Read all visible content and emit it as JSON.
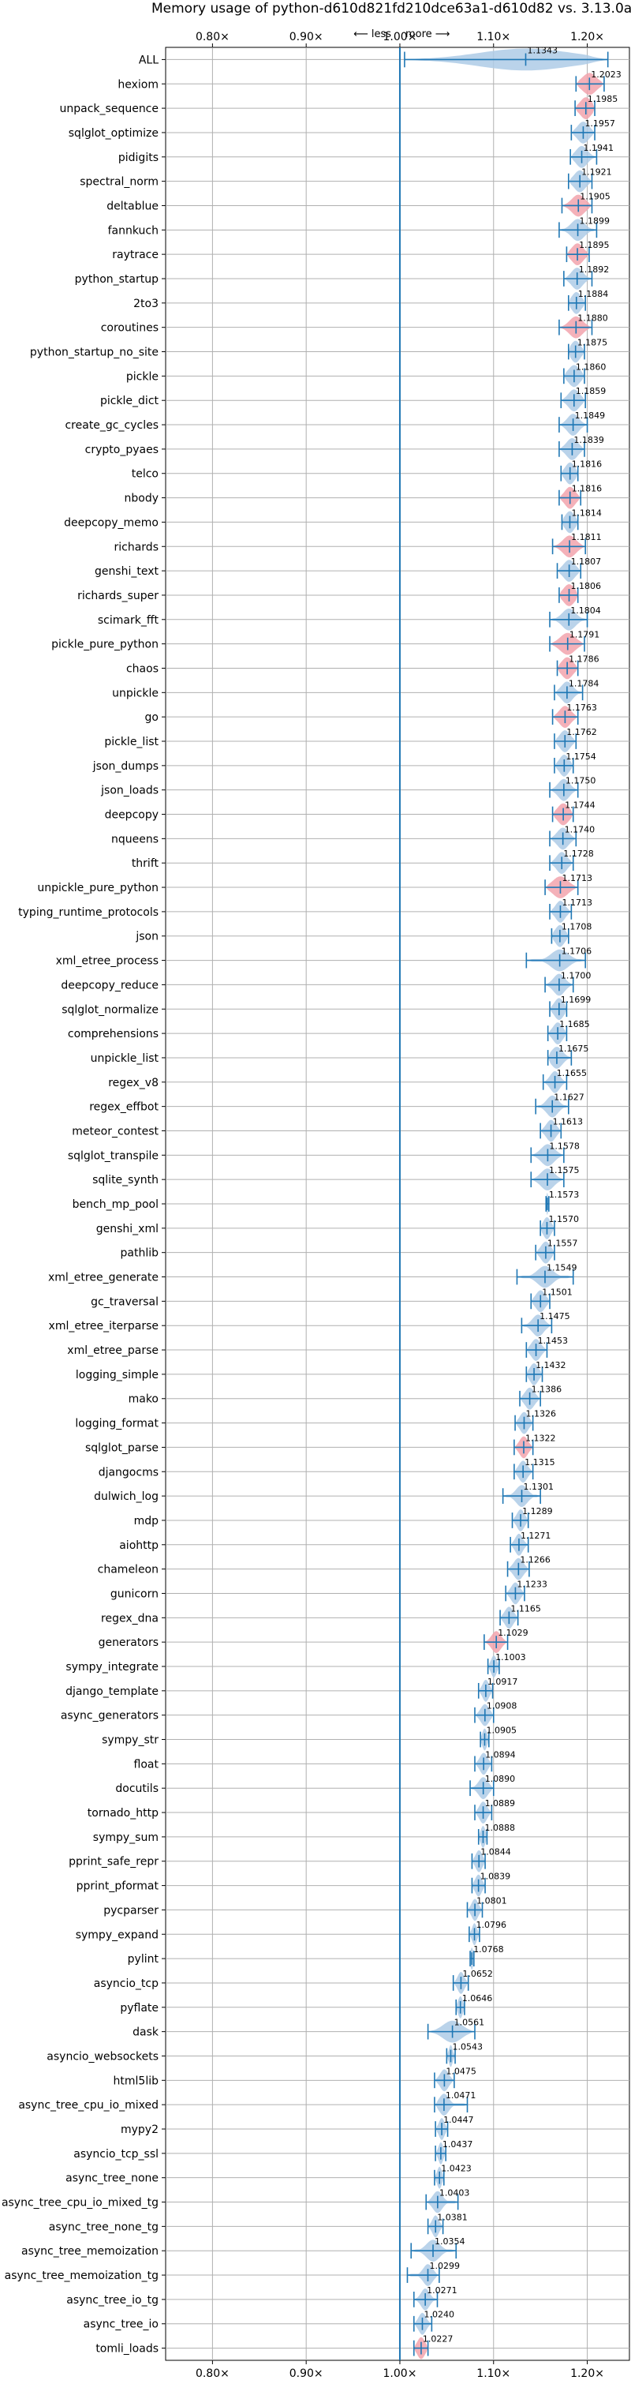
{
  "chart_data": {
    "type": "violin",
    "title": "Memory usage of python-d610d821fd210dce63a1-d610d82 vs. 3.13.0a5",
    "xlabel": "",
    "ylabel": "",
    "xlim": [
      0.75,
      1.245
    ],
    "x_ticks": [
      0.8,
      0.9,
      1.0,
      1.1,
      1.2
    ],
    "x_tick_labels": [
      "0.80×",
      "0.90×",
      "1.00×",
      "1.10×",
      "1.20×"
    ],
    "reference_line": 1.0,
    "direction_labels": {
      "less": "⟵ less",
      "more": "more ⟶"
    },
    "grid": true,
    "colors": {
      "violin_normal": "#aecbe6",
      "violin_highlight": "#f2a3ad",
      "line": "#1f77b4",
      "reference": "#1f77b4",
      "grid": "#b0b0b0"
    },
    "series": [
      {
        "name": "ALL",
        "value": 1.1343,
        "label": "1.1343",
        "min": 1.005,
        "max": 1.222,
        "spread": 0.1,
        "highlight": false
      },
      {
        "name": "hexiom",
        "value": 1.2023,
        "label": "1.2023",
        "min": 1.188,
        "max": 1.218,
        "spread": 0.015,
        "highlight": true
      },
      {
        "name": "unpack_sequence",
        "value": 1.1985,
        "label": "1.1985",
        "min": 1.187,
        "max": 1.208,
        "spread": 0.012,
        "highlight": true
      },
      {
        "name": "sqlglot_optimize",
        "value": 1.1957,
        "label": "1.1957",
        "min": 1.183,
        "max": 1.208,
        "spread": 0.012,
        "highlight": false
      },
      {
        "name": "pidigits",
        "value": 1.1941,
        "label": "1.1941",
        "min": 1.182,
        "max": 1.21,
        "spread": 0.012,
        "highlight": false
      },
      {
        "name": "spectral_norm",
        "value": 1.1921,
        "label": "1.1921",
        "min": 1.18,
        "max": 1.205,
        "spread": 0.012,
        "highlight": false
      },
      {
        "name": "deltablue",
        "value": 1.1905,
        "label": "1.1905",
        "min": 1.173,
        "max": 1.205,
        "spread": 0.014,
        "highlight": true
      },
      {
        "name": "fannkuch",
        "value": 1.1899,
        "label": "1.1899",
        "min": 1.17,
        "max": 1.21,
        "spread": 0.014,
        "highlight": false
      },
      {
        "name": "raytrace",
        "value": 1.1895,
        "label": "1.1895",
        "min": 1.178,
        "max": 1.202,
        "spread": 0.012,
        "highlight": true
      },
      {
        "name": "python_startup",
        "value": 1.1892,
        "label": "1.1892",
        "min": 1.175,
        "max": 1.205,
        "spread": 0.012,
        "highlight": false
      },
      {
        "name": "2to3",
        "value": 1.1884,
        "label": "1.1884",
        "min": 1.18,
        "max": 1.198,
        "spread": 0.01,
        "highlight": false
      },
      {
        "name": "coroutines",
        "value": 1.188,
        "label": "1.1880",
        "min": 1.17,
        "max": 1.205,
        "spread": 0.014,
        "highlight": true
      },
      {
        "name": "python_startup_no_site",
        "value": 1.1875,
        "label": "1.1875",
        "min": 1.18,
        "max": 1.197,
        "spread": 0.01,
        "highlight": false
      },
      {
        "name": "pickle",
        "value": 1.186,
        "label": "1.1860",
        "min": 1.175,
        "max": 1.197,
        "spread": 0.012,
        "highlight": false
      },
      {
        "name": "pickle_dict",
        "value": 1.1859,
        "label": "1.1859",
        "min": 1.172,
        "max": 1.198,
        "spread": 0.012,
        "highlight": false
      },
      {
        "name": "create_gc_cycles",
        "value": 1.1849,
        "label": "1.1849",
        "min": 1.17,
        "max": 1.2,
        "spread": 0.012,
        "highlight": false
      },
      {
        "name": "crypto_pyaes",
        "value": 1.1839,
        "label": "1.1839",
        "min": 1.17,
        "max": 1.197,
        "spread": 0.012,
        "highlight": false
      },
      {
        "name": "telco",
        "value": 1.1816,
        "label": "1.1816",
        "min": 1.172,
        "max": 1.19,
        "spread": 0.01,
        "highlight": false
      },
      {
        "name": "nbody",
        "value": 1.1816,
        "label": "1.1816",
        "min": 1.17,
        "max": 1.193,
        "spread": 0.011,
        "highlight": true
      },
      {
        "name": "deepcopy_memo",
        "value": 1.1814,
        "label": "1.1814",
        "min": 1.173,
        "max": 1.19,
        "spread": 0.01,
        "highlight": false
      },
      {
        "name": "richards",
        "value": 1.1811,
        "label": "1.1811",
        "min": 1.163,
        "max": 1.198,
        "spread": 0.014,
        "highlight": true
      },
      {
        "name": "genshi_text",
        "value": 1.1807,
        "label": "1.1807",
        "min": 1.168,
        "max": 1.193,
        "spread": 0.012,
        "highlight": false
      },
      {
        "name": "richards_super",
        "value": 1.1806,
        "label": "1.1806",
        "min": 1.17,
        "max": 1.19,
        "spread": 0.012,
        "highlight": true
      },
      {
        "name": "scimark_fft",
        "value": 1.1804,
        "label": "1.1804",
        "min": 1.16,
        "max": 1.2,
        "spread": 0.014,
        "highlight": false
      },
      {
        "name": "pickle_pure_python",
        "value": 1.1791,
        "label": "1.1791",
        "min": 1.16,
        "max": 1.197,
        "spread": 0.016,
        "highlight": true
      },
      {
        "name": "chaos",
        "value": 1.1786,
        "label": "1.1786",
        "min": 1.168,
        "max": 1.19,
        "spread": 0.012,
        "highlight": true
      },
      {
        "name": "unpickle",
        "value": 1.1784,
        "label": "1.1784",
        "min": 1.165,
        "max": 1.195,
        "spread": 0.012,
        "highlight": false
      },
      {
        "name": "go",
        "value": 1.1763,
        "label": "1.1763",
        "min": 1.163,
        "max": 1.19,
        "spread": 0.012,
        "highlight": true
      },
      {
        "name": "pickle_list",
        "value": 1.1762,
        "label": "1.1762",
        "min": 1.165,
        "max": 1.188,
        "spread": 0.011,
        "highlight": false
      },
      {
        "name": "json_dumps",
        "value": 1.1754,
        "label": "1.1754",
        "min": 1.165,
        "max": 1.185,
        "spread": 0.01,
        "highlight": false
      },
      {
        "name": "json_loads",
        "value": 1.175,
        "label": "1.1750",
        "min": 1.16,
        "max": 1.19,
        "spread": 0.012,
        "highlight": false
      },
      {
        "name": "deepcopy",
        "value": 1.1744,
        "label": "1.1744",
        "min": 1.163,
        "max": 1.185,
        "spread": 0.012,
        "highlight": true
      },
      {
        "name": "nqueens",
        "value": 1.174,
        "label": "1.1740",
        "min": 1.16,
        "max": 1.188,
        "spread": 0.012,
        "highlight": false
      },
      {
        "name": "thrift",
        "value": 1.1728,
        "label": "1.1728",
        "min": 1.16,
        "max": 1.185,
        "spread": 0.011,
        "highlight": false
      },
      {
        "name": "unpickle_pure_python",
        "value": 1.1713,
        "label": "1.1713",
        "min": 1.155,
        "max": 1.19,
        "spread": 0.016,
        "highlight": true
      },
      {
        "name": "typing_runtime_protocols",
        "value": 1.1713,
        "label": "1.1713",
        "min": 1.16,
        "max": 1.183,
        "spread": 0.01,
        "highlight": false
      },
      {
        "name": "json",
        "value": 1.1708,
        "label": "1.1708",
        "min": 1.162,
        "max": 1.18,
        "spread": 0.01,
        "highlight": false
      },
      {
        "name": "xml_etree_process",
        "value": 1.1706,
        "label": "1.1706",
        "min": 1.135,
        "max": 1.198,
        "spread": 0.018,
        "highlight": false
      },
      {
        "name": "deepcopy_reduce",
        "value": 1.17,
        "label": "1.1700",
        "min": 1.155,
        "max": 1.185,
        "spread": 0.012,
        "highlight": false
      },
      {
        "name": "sqlglot_normalize",
        "value": 1.1699,
        "label": "1.1699",
        "min": 1.16,
        "max": 1.178,
        "spread": 0.01,
        "highlight": false
      },
      {
        "name": "comprehensions",
        "value": 1.1685,
        "label": "1.1685",
        "min": 1.158,
        "max": 1.178,
        "spread": 0.01,
        "highlight": false
      },
      {
        "name": "unpickle_list",
        "value": 1.1675,
        "label": "1.1675",
        "min": 1.158,
        "max": 1.183,
        "spread": 0.012,
        "highlight": false
      },
      {
        "name": "regex_v8",
        "value": 1.1655,
        "label": "1.1655",
        "min": 1.153,
        "max": 1.178,
        "spread": 0.01,
        "highlight": false
      },
      {
        "name": "regex_effbot",
        "value": 1.1627,
        "label": "1.1627",
        "min": 1.145,
        "max": 1.18,
        "spread": 0.012,
        "highlight": false
      },
      {
        "name": "meteor_contest",
        "value": 1.1613,
        "label": "1.1613",
        "min": 1.15,
        "max": 1.172,
        "spread": 0.01,
        "highlight": false
      },
      {
        "name": "sqlglot_transpile",
        "value": 1.1578,
        "label": "1.1578",
        "min": 1.14,
        "max": 1.175,
        "spread": 0.014,
        "highlight": false
      },
      {
        "name": "sqlite_synth",
        "value": 1.1575,
        "label": "1.1575",
        "min": 1.14,
        "max": 1.175,
        "spread": 0.014,
        "highlight": false
      },
      {
        "name": "bench_mp_pool",
        "value": 1.1573,
        "label": "1.1573",
        "min": 1.156,
        "max": 1.159,
        "spread": 0.002,
        "highlight": false
      },
      {
        "name": "genshi_xml",
        "value": 1.157,
        "label": "1.1570",
        "min": 1.15,
        "max": 1.165,
        "spread": 0.008,
        "highlight": false
      },
      {
        "name": "pathlib",
        "value": 1.1557,
        "label": "1.1557",
        "min": 1.145,
        "max": 1.165,
        "spread": 0.01,
        "highlight": false
      },
      {
        "name": "xml_etree_generate",
        "value": 1.1549,
        "label": "1.1549",
        "min": 1.125,
        "max": 1.185,
        "spread": 0.016,
        "highlight": false
      },
      {
        "name": "gc_traversal",
        "value": 1.1501,
        "label": "1.1501",
        "min": 1.14,
        "max": 1.16,
        "spread": 0.01,
        "highlight": false
      },
      {
        "name": "xml_etree_iterparse",
        "value": 1.1475,
        "label": "1.1475",
        "min": 1.13,
        "max": 1.162,
        "spread": 0.012,
        "highlight": false
      },
      {
        "name": "xml_etree_parse",
        "value": 1.1453,
        "label": "1.1453",
        "min": 1.135,
        "max": 1.157,
        "spread": 0.01,
        "highlight": false
      },
      {
        "name": "logging_simple",
        "value": 1.1432,
        "label": "1.1432",
        "min": 1.135,
        "max": 1.152,
        "spread": 0.009,
        "highlight": false
      },
      {
        "name": "mako",
        "value": 1.1386,
        "label": "1.1386",
        "min": 1.128,
        "max": 1.15,
        "spread": 0.01,
        "highlight": false
      },
      {
        "name": "logging_format",
        "value": 1.1326,
        "label": "1.1326",
        "min": 1.123,
        "max": 1.142,
        "spread": 0.009,
        "highlight": false
      },
      {
        "name": "sqlglot_parse",
        "value": 1.1322,
        "label": "1.1322",
        "min": 1.122,
        "max": 1.142,
        "spread": 0.009,
        "highlight": true
      },
      {
        "name": "djangocms",
        "value": 1.1315,
        "label": "1.1315",
        "min": 1.122,
        "max": 1.142,
        "spread": 0.009,
        "highlight": false
      },
      {
        "name": "dulwich_log",
        "value": 1.1301,
        "label": "1.1301",
        "min": 1.11,
        "max": 1.15,
        "spread": 0.012,
        "highlight": false
      },
      {
        "name": "mdp",
        "value": 1.1289,
        "label": "1.1289",
        "min": 1.12,
        "max": 1.137,
        "spread": 0.008,
        "highlight": false
      },
      {
        "name": "aiohttp",
        "value": 1.1271,
        "label": "1.1271",
        "min": 1.118,
        "max": 1.137,
        "spread": 0.008,
        "highlight": false
      },
      {
        "name": "chameleon",
        "value": 1.1266,
        "label": "1.1266",
        "min": 1.115,
        "max": 1.138,
        "spread": 0.01,
        "highlight": false
      },
      {
        "name": "gunicorn",
        "value": 1.1233,
        "label": "1.1233",
        "min": 1.113,
        "max": 1.133,
        "spread": 0.009,
        "highlight": false
      },
      {
        "name": "regex_dna",
        "value": 1.1165,
        "label": "1.1165",
        "min": 1.107,
        "max": 1.126,
        "spread": 0.009,
        "highlight": false
      },
      {
        "name": "generators",
        "value": 1.1029,
        "label": "1.1029",
        "min": 1.09,
        "max": 1.115,
        "spread": 0.01,
        "highlight": true
      },
      {
        "name": "sympy_integrate",
        "value": 1.1003,
        "label": "1.1003",
        "min": 1.094,
        "max": 1.106,
        "spread": 0.006,
        "highlight": false
      },
      {
        "name": "django_template",
        "value": 1.0917,
        "label": "1.0917",
        "min": 1.084,
        "max": 1.099,
        "spread": 0.007,
        "highlight": false
      },
      {
        "name": "async_generators",
        "value": 1.0908,
        "label": "1.0908",
        "min": 1.08,
        "max": 1.1,
        "spread": 0.009,
        "highlight": false
      },
      {
        "name": "sympy_str",
        "value": 1.0905,
        "label": "1.0905",
        "min": 1.086,
        "max": 1.095,
        "spread": 0.005,
        "highlight": false
      },
      {
        "name": "float",
        "value": 1.0894,
        "label": "1.0894",
        "min": 1.08,
        "max": 1.098,
        "spread": 0.008,
        "highlight": false
      },
      {
        "name": "docutils",
        "value": 1.089,
        "label": "1.0890",
        "min": 1.075,
        "max": 1.1,
        "spread": 0.01,
        "highlight": false
      },
      {
        "name": "tornado_http",
        "value": 1.0889,
        "label": "1.0889",
        "min": 1.08,
        "max": 1.098,
        "spread": 0.008,
        "highlight": false
      },
      {
        "name": "sympy_sum",
        "value": 1.0888,
        "label": "1.0888",
        "min": 1.084,
        "max": 1.093,
        "spread": 0.005,
        "highlight": false
      },
      {
        "name": "pprint_safe_repr",
        "value": 1.0844,
        "label": "1.0844",
        "min": 1.077,
        "max": 1.091,
        "spread": 0.007,
        "highlight": false
      },
      {
        "name": "pprint_pformat",
        "value": 1.0839,
        "label": "1.0839",
        "min": 1.077,
        "max": 1.091,
        "spread": 0.007,
        "highlight": false
      },
      {
        "name": "pycparser",
        "value": 1.0801,
        "label": "1.0801",
        "min": 1.072,
        "max": 1.088,
        "spread": 0.007,
        "highlight": false
      },
      {
        "name": "sympy_expand",
        "value": 1.0796,
        "label": "1.0796",
        "min": 1.074,
        "max": 1.085,
        "spread": 0.005,
        "highlight": false
      },
      {
        "name": "pylint",
        "value": 1.0768,
        "label": "1.0768",
        "min": 1.075,
        "max": 1.079,
        "spread": 0.003,
        "highlight": false
      },
      {
        "name": "asyncio_tcp",
        "value": 1.0652,
        "label": "1.0652",
        "min": 1.057,
        "max": 1.073,
        "spread": 0.007,
        "highlight": false
      },
      {
        "name": "pyflate",
        "value": 1.0646,
        "label": "1.0646",
        "min": 1.06,
        "max": 1.069,
        "spread": 0.005,
        "highlight": false
      },
      {
        "name": "dask",
        "value": 1.0561,
        "label": "1.0561",
        "min": 1.03,
        "max": 1.08,
        "spread": 0.02,
        "highlight": false
      },
      {
        "name": "asyncio_websockets",
        "value": 1.0543,
        "label": "1.0543",
        "min": 1.05,
        "max": 1.059,
        "spread": 0.004,
        "highlight": false
      },
      {
        "name": "html5lib",
        "value": 1.0475,
        "label": "1.0475",
        "min": 1.037,
        "max": 1.058,
        "spread": 0.009,
        "highlight": false
      },
      {
        "name": "async_tree_cpu_io_mixed",
        "value": 1.0471,
        "label": "1.0471",
        "min": 1.037,
        "max": 1.072,
        "spread": 0.01,
        "highlight": false
      },
      {
        "name": "mypy2",
        "value": 1.0447,
        "label": "1.0447",
        "min": 1.038,
        "max": 1.051,
        "spread": 0.006,
        "highlight": false
      },
      {
        "name": "asyncio_tcp_ssl",
        "value": 1.0437,
        "label": "1.0437",
        "min": 1.038,
        "max": 1.049,
        "spread": 0.005,
        "highlight": false
      },
      {
        "name": "async_tree_none",
        "value": 1.0423,
        "label": "1.0423",
        "min": 1.037,
        "max": 1.047,
        "spread": 0.005,
        "highlight": false
      },
      {
        "name": "async_tree_cpu_io_mixed_tg",
        "value": 1.0403,
        "label": "1.0403",
        "min": 1.028,
        "max": 1.062,
        "spread": 0.01,
        "highlight": false
      },
      {
        "name": "async_tree_none_tg",
        "value": 1.0381,
        "label": "1.0381",
        "min": 1.03,
        "max": 1.046,
        "spread": 0.007,
        "highlight": false
      },
      {
        "name": "async_tree_memoization",
        "value": 1.0354,
        "label": "1.0354",
        "min": 1.012,
        "max": 1.06,
        "spread": 0.014,
        "highlight": false
      },
      {
        "name": "async_tree_memoization_tg",
        "value": 1.0299,
        "label": "1.0299",
        "min": 1.008,
        "max": 1.042,
        "spread": 0.01,
        "highlight": false
      },
      {
        "name": "async_tree_io_tg",
        "value": 1.0271,
        "label": "1.0271",
        "min": 1.015,
        "max": 1.04,
        "spread": 0.009,
        "highlight": false
      },
      {
        "name": "async_tree_io",
        "value": 1.024,
        "label": "1.0240",
        "min": 1.015,
        "max": 1.034,
        "spread": 0.008,
        "highlight": false
      },
      {
        "name": "tomli_loads",
        "value": 1.0227,
        "label": "1.0227",
        "min": 1.015,
        "max": 1.03,
        "spread": 0.008,
        "highlight": true
      }
    ]
  }
}
